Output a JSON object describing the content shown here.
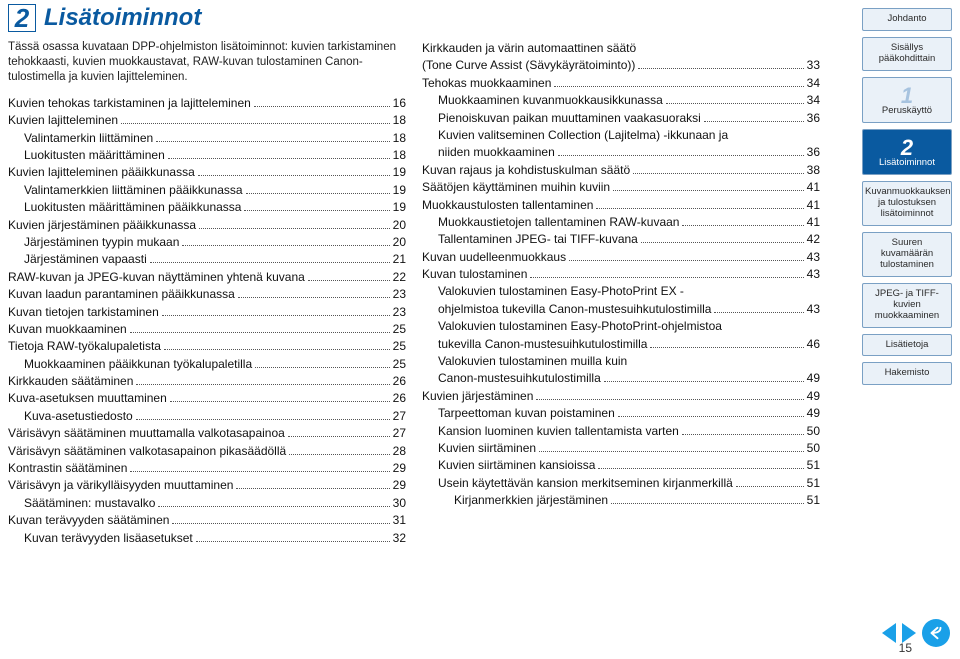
{
  "chapter": {
    "num": "2",
    "title": "Lisätoiminnot"
  },
  "intro": "Tässä osassa kuvataan DPP-ohjelmiston lisätoiminnot: kuvien tarkistaminen tehokkaasti, kuvien muokkaustavat, RAW-kuvan tulostaminen Canon-tulostimella ja kuvien lajitteleminen.",
  "toc_left": [
    {
      "label": "Kuvien tehokas tarkistaminen ja lajitteleminen",
      "pg": "16",
      "ind": 0
    },
    {
      "label": "Kuvien lajitteleminen",
      "pg": "18",
      "ind": 0
    },
    {
      "label": "Valintamerkin liittäminen",
      "pg": "18",
      "ind": 1
    },
    {
      "label": "Luokitusten määrittäminen",
      "pg": "18",
      "ind": 1
    },
    {
      "label": "Kuvien lajitteleminen pääikkunassa",
      "pg": "19",
      "ind": 0
    },
    {
      "label": "Valintamerkkien liittäminen pääikkunassa",
      "pg": "19",
      "ind": 1
    },
    {
      "label": "Luokitusten määrittäminen pääikkunassa",
      "pg": "19",
      "ind": 1
    },
    {
      "label": "Kuvien järjestäminen pääikkunassa",
      "pg": "20",
      "ind": 0
    },
    {
      "label": "Järjestäminen tyypin mukaan",
      "pg": "20",
      "ind": 1
    },
    {
      "label": "Järjestäminen vapaasti",
      "pg": "21",
      "ind": 1
    },
    {
      "label": "RAW-kuvan ja JPEG-kuvan näyttäminen yhtenä kuvana",
      "pg": "22",
      "ind": 0
    },
    {
      "label": "Kuvan laadun parantaminen pääikkunassa",
      "pg": "23",
      "ind": 0
    },
    {
      "label": "Kuvan tietojen tarkistaminen",
      "pg": "23",
      "ind": 0
    },
    {
      "label": "Kuvan muokkaaminen",
      "pg": "25",
      "ind": 0
    },
    {
      "label": "Tietoja RAW-työkalupaletista",
      "pg": "25",
      "ind": 0
    },
    {
      "label": "Muokkaaminen pääikkunan työkalupaletilla",
      "pg": "25",
      "ind": 1
    },
    {
      "label": "Kirkkauden säätäminen",
      "pg": "26",
      "ind": 0
    },
    {
      "label": "Kuva-asetuksen muuttaminen",
      "pg": "26",
      "ind": 0
    },
    {
      "label": "Kuva-asetustiedosto",
      "pg": "27",
      "ind": 1
    },
    {
      "label": "Värisävyn säätäminen muuttamalla valkotasapainoa",
      "pg": "27",
      "ind": 0
    },
    {
      "label": "Värisävyn säätäminen valkotasapainon pikasäädöllä",
      "pg": "28",
      "ind": 0
    },
    {
      "label": "Kontrastin säätäminen",
      "pg": "29",
      "ind": 0
    },
    {
      "label": "Värisävyn ja värikylläisyyden muuttaminen",
      "pg": "29",
      "ind": 0
    },
    {
      "label": "Säätäminen: mustavalko",
      "pg": "30",
      "ind": 1
    },
    {
      "label": "Kuvan terävyyden säätäminen",
      "pg": "31",
      "ind": 0
    },
    {
      "label": "Kuvan terävyyden lisäasetukset",
      "pg": "32",
      "ind": 1
    }
  ],
  "toc_right": [
    {
      "label": "Kirkkauden ja värin automaattinen säätö",
      "pg": "",
      "ind": 0,
      "nodots": true
    },
    {
      "label": "(Tone Curve Assist (Sävykäyrätoiminto))",
      "pg": "33",
      "ind": 0
    },
    {
      "label": "Tehokas muokkaaminen",
      "pg": "34",
      "ind": 0
    },
    {
      "label": "Muokkaaminen kuvanmuokkausikkunassa",
      "pg": "34",
      "ind": 1
    },
    {
      "label": "Pienoiskuvan paikan muuttaminen vaakasuoraksi",
      "pg": "36",
      "ind": 1
    },
    {
      "label": "Kuvien valitseminen Collection (Lajitelma) -ikkunaan ja",
      "pg": "",
      "ind": 1,
      "nodots": true
    },
    {
      "label": "niiden muokkaaminen",
      "pg": "36",
      "ind": 1
    },
    {
      "label": "Kuvan rajaus ja kohdistuskulman säätö",
      "pg": "38",
      "ind": 0
    },
    {
      "label": "Säätöjen käyttäminen muihin kuviin",
      "pg": "41",
      "ind": 0
    },
    {
      "label": "Muokkaustulosten tallentaminen",
      "pg": "41",
      "ind": 0
    },
    {
      "label": "Muokkaustietojen tallentaminen RAW-kuvaan",
      "pg": "41",
      "ind": 1
    },
    {
      "label": "Tallentaminen JPEG- tai TIFF-kuvana",
      "pg": "42",
      "ind": 1
    },
    {
      "label": "Kuvan uudelleenmuokkaus",
      "pg": "43",
      "ind": 0
    },
    {
      "label": "Kuvan tulostaminen",
      "pg": "43",
      "ind": 0
    },
    {
      "label": "Valokuvien tulostaminen Easy-PhotoPrint EX -",
      "pg": "",
      "ind": 1,
      "nodots": true
    },
    {
      "label": "ohjelmistoa tukevilla Canon-mustesuihkutulostimilla",
      "pg": "43",
      "ind": 1
    },
    {
      "label": "Valokuvien tulostaminen Easy-PhotoPrint-ohjelmistoa",
      "pg": "",
      "ind": 1,
      "nodots": true
    },
    {
      "label": "tukevilla Canon-mustesuihkutulostimilla",
      "pg": "46",
      "ind": 1
    },
    {
      "label": "Valokuvien tulostaminen muilla kuin",
      "pg": "",
      "ind": 1,
      "nodots": true
    },
    {
      "label": "Canon-mustesuihkutulostimilla",
      "pg": "49",
      "ind": 1
    },
    {
      "label": "Kuvien järjestäminen",
      "pg": "49",
      "ind": 0
    },
    {
      "label": "Tarpeettoman kuvan poistaminen",
      "pg": "49",
      "ind": 1
    },
    {
      "label": "Kansion luominen kuvien tallentamista varten",
      "pg": "50",
      "ind": 1
    },
    {
      "label": "Kuvien siirtäminen",
      "pg": "50",
      "ind": 1
    },
    {
      "label": "Kuvien siirtäminen kansioissa",
      "pg": "51",
      "ind": 1
    },
    {
      "label": "Usein käytettävän kansion merkitseminen kirjanmerkillä",
      "pg": "51",
      "ind": 1
    },
    {
      "label": "Kirjanmerkkien järjestäminen",
      "pg": "51",
      "ind": 2
    }
  ],
  "sidebar": [
    {
      "key": "intro",
      "label": "Johdanto"
    },
    {
      "key": "contents",
      "label": "Sisällys pääkohdittain"
    },
    {
      "key": "ch1",
      "num": "1",
      "label": "Peruskäyttö"
    },
    {
      "key": "ch2",
      "num": "2",
      "label": "Lisätoiminnot",
      "active": true
    },
    {
      "key": "ch3",
      "label": "Kuvanmuokkauksen ja tulostuksen lisätoiminnot"
    },
    {
      "key": "ch4",
      "label": "Suuren kuvamäärän tulostaminen"
    },
    {
      "key": "ch5",
      "label": "JPEG- ja TIFF-kuvien muokkaaminen"
    },
    {
      "key": "extra",
      "label": "Lisätietoja"
    },
    {
      "key": "index",
      "label": "Hakemisto"
    }
  ],
  "page_number": "15",
  "colors": {
    "brand": "#0a5aa0",
    "nav": "#1aa0e8",
    "side_bg": "#eaf1f8",
    "side_border": "#7aa0c4"
  }
}
